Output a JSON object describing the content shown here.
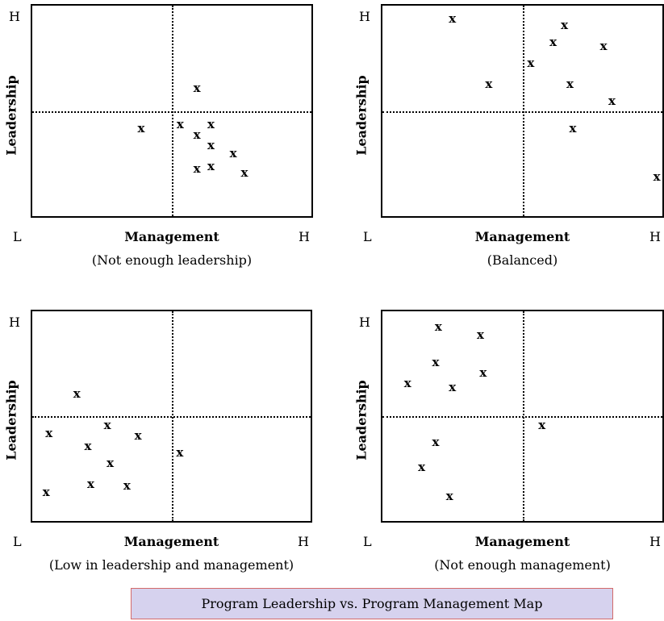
{
  "caption": "Program Leadership vs. Program Management Map",
  "chart_data": [
    {
      "type": "scatter",
      "subtitle": "(Not enough leadership)",
      "xlabel": "Management",
      "ylabel": "Leadership",
      "x_ticks": [
        "L",
        "H"
      ],
      "y_ticks": [
        "H"
      ],
      "xlim": [
        0,
        1
      ],
      "ylim": [
        0,
        1
      ],
      "quadrant_split": [
        0.5,
        0.5
      ],
      "marker": "x",
      "points": [
        {
          "x": 0.59,
          "y": 0.6
        },
        {
          "x": 0.39,
          "y": 0.41
        },
        {
          "x": 0.53,
          "y": 0.43
        },
        {
          "x": 0.59,
          "y": 0.38
        },
        {
          "x": 0.64,
          "y": 0.43
        },
        {
          "x": 0.64,
          "y": 0.33
        },
        {
          "x": 0.72,
          "y": 0.29
        },
        {
          "x": 0.59,
          "y": 0.22
        },
        {
          "x": 0.64,
          "y": 0.23
        },
        {
          "x": 0.76,
          "y": 0.2
        }
      ]
    },
    {
      "type": "scatter",
      "subtitle": "(Balanced)",
      "xlabel": "Management",
      "ylabel": "Leadership",
      "x_ticks": [
        "L",
        "H"
      ],
      "y_ticks": [
        "H"
      ],
      "xlim": [
        0,
        1
      ],
      "ylim": [
        0,
        1
      ],
      "quadrant_split": [
        0.5,
        0.5
      ],
      "marker": "x",
      "points": [
        {
          "x": 0.25,
          "y": 0.93
        },
        {
          "x": 0.65,
          "y": 0.9
        },
        {
          "x": 0.61,
          "y": 0.82
        },
        {
          "x": 0.79,
          "y": 0.8
        },
        {
          "x": 0.53,
          "y": 0.72
        },
        {
          "x": 0.38,
          "y": 0.62
        },
        {
          "x": 0.67,
          "y": 0.62
        },
        {
          "x": 0.82,
          "y": 0.54
        },
        {
          "x": 0.68,
          "y": 0.41
        },
        {
          "x": 0.98,
          "y": 0.18
        }
      ]
    },
    {
      "type": "scatter",
      "subtitle": "(Low in leadership and management)",
      "xlabel": "Management",
      "ylabel": "Leadership",
      "x_ticks": [
        "L",
        "H"
      ],
      "y_ticks": [
        "H"
      ],
      "xlim": [
        0,
        1
      ],
      "ylim": [
        0,
        1
      ],
      "quadrant_split": [
        0.5,
        0.5
      ],
      "marker": "x",
      "points": [
        {
          "x": 0.16,
          "y": 0.6
        },
        {
          "x": 0.06,
          "y": 0.41
        },
        {
          "x": 0.27,
          "y": 0.45
        },
        {
          "x": 0.38,
          "y": 0.4
        },
        {
          "x": 0.2,
          "y": 0.35
        },
        {
          "x": 0.53,
          "y": 0.32
        },
        {
          "x": 0.28,
          "y": 0.27
        },
        {
          "x": 0.05,
          "y": 0.13
        },
        {
          "x": 0.21,
          "y": 0.17
        },
        {
          "x": 0.34,
          "y": 0.16
        }
      ]
    },
    {
      "type": "scatter",
      "subtitle": "(Not enough management)",
      "xlabel": "Management",
      "ylabel": "Leadership",
      "x_ticks": [
        "L",
        "H"
      ],
      "y_ticks": [
        "H"
      ],
      "xlim": [
        0,
        1
      ],
      "ylim": [
        0,
        1
      ],
      "quadrant_split": [
        0.5,
        0.5
      ],
      "marker": "x",
      "points": [
        {
          "x": 0.2,
          "y": 0.92
        },
        {
          "x": 0.35,
          "y": 0.88
        },
        {
          "x": 0.19,
          "y": 0.75
        },
        {
          "x": 0.36,
          "y": 0.7
        },
        {
          "x": 0.09,
          "y": 0.65
        },
        {
          "x": 0.25,
          "y": 0.63
        },
        {
          "x": 0.57,
          "y": 0.45
        },
        {
          "x": 0.19,
          "y": 0.37
        },
        {
          "x": 0.14,
          "y": 0.25
        },
        {
          "x": 0.24,
          "y": 0.11
        }
      ]
    }
  ]
}
